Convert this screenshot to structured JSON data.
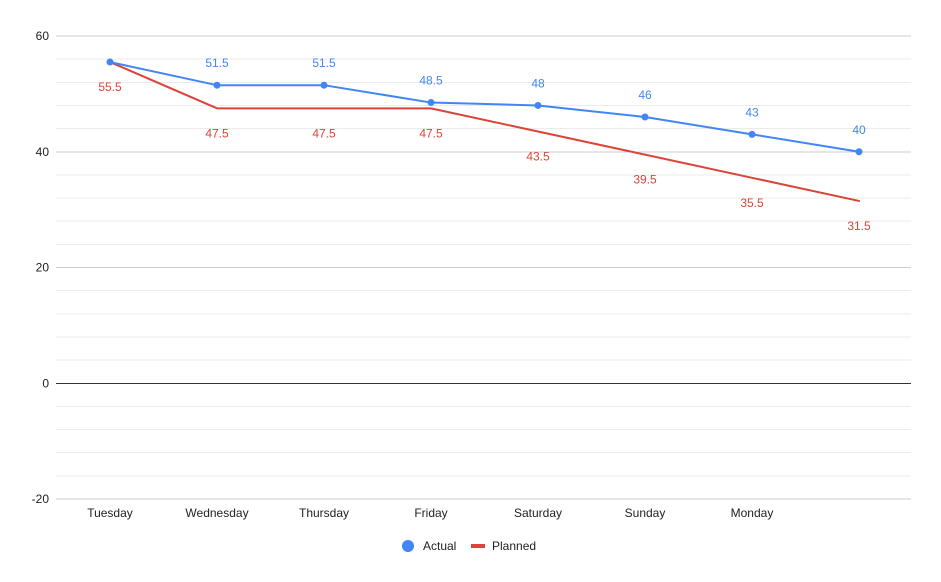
{
  "chart_data": {
    "type": "line",
    "title": "",
    "xlabel": "",
    "ylabel": "",
    "categories": [
      "Tuesday",
      "Wednesday",
      "Thursday",
      "Friday",
      "Saturday",
      "Sunday",
      "Monday",
      ""
    ],
    "ylim": [
      -20,
      60
    ],
    "yticks": [
      -20,
      0,
      20,
      40,
      60
    ],
    "minor_gridlines_per_major": 4,
    "grid": true,
    "legend_position": "bottom",
    "series": [
      {
        "name": "Actual",
        "color": "#4285f4",
        "marker": "circle",
        "label_position": "above",
        "values": [
          55.5,
          51.5,
          51.5,
          48.5,
          48,
          46,
          43,
          40
        ],
        "labels": [
          "",
          "51.5",
          "51.5",
          "48.5",
          "48",
          "46",
          "43",
          "40"
        ]
      },
      {
        "name": "Planned",
        "color": "#db4437",
        "marker": "none",
        "label_position": "below",
        "values": [
          55.5,
          47.5,
          47.5,
          47.5,
          43.5,
          39.5,
          35.5,
          31.5
        ],
        "labels": [
          "55.5",
          "47.5",
          "47.5",
          "47.5",
          "43.5",
          "39.5",
          "35.5",
          "31.5"
        ]
      }
    ]
  }
}
